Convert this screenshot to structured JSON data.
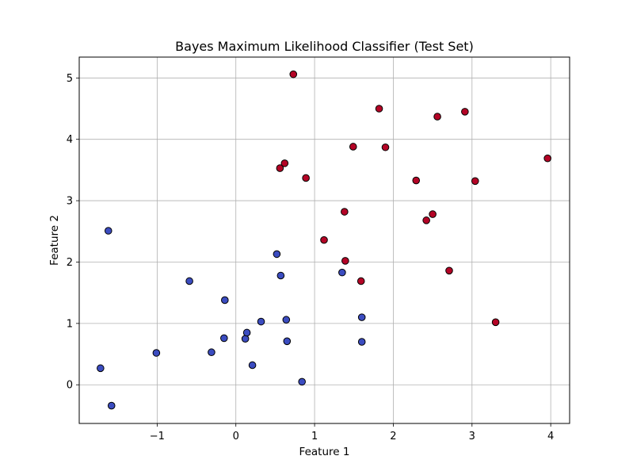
{
  "chart_data": {
    "type": "scatter",
    "title": "Bayes Maximum Likelihood Classifier (Test Set)",
    "xlabel": "Feature 1",
    "ylabel": "Feature 2",
    "xlim": [
      -1.99,
      4.24
    ],
    "ylim": [
      -0.63,
      5.34
    ],
    "xticks": [
      -1,
      0,
      1,
      2,
      3,
      4
    ],
    "yticks": [
      0,
      1,
      2,
      3,
      4,
      5
    ],
    "grid": true,
    "colors": {
      "class_0": "#3b4cc0",
      "class_1": "#b40426",
      "edge": "#000000",
      "grid": "#b0b0b0"
    },
    "series": [
      {
        "class": 0,
        "color": "#3b4cc0",
        "points": [
          [
            -1.72,
            0.27
          ],
          [
            -1.58,
            -0.34
          ],
          [
            -1.62,
            2.51
          ],
          [
            -1.01,
            0.52
          ],
          [
            -0.59,
            1.69
          ],
          [
            -0.31,
            0.53
          ],
          [
            -0.15,
            0.76
          ],
          [
            -0.14,
            1.38
          ],
          [
            0.12,
            0.75
          ],
          [
            0.14,
            0.85
          ],
          [
            0.21,
            0.32
          ],
          [
            0.32,
            1.03
          ],
          [
            0.52,
            2.13
          ],
          [
            0.57,
            1.78
          ],
          [
            0.64,
            1.06
          ],
          [
            0.65,
            0.71
          ],
          [
            0.84,
            0.05
          ],
          [
            1.35,
            1.83
          ],
          [
            1.6,
            1.1
          ],
          [
            1.6,
            0.7
          ]
        ]
      },
      {
        "class": 1,
        "color": "#b40426",
        "points": [
          [
            0.73,
            5.06
          ],
          [
            0.56,
            3.53
          ],
          [
            0.62,
            3.61
          ],
          [
            0.89,
            3.37
          ],
          [
            1.12,
            2.36
          ],
          [
            1.38,
            2.82
          ],
          [
            1.39,
            2.02
          ],
          [
            1.49,
            3.88
          ],
          [
            1.59,
            1.69
          ],
          [
            1.82,
            4.5
          ],
          [
            1.9,
            3.87
          ],
          [
            2.29,
            3.33
          ],
          [
            2.42,
            2.68
          ],
          [
            2.5,
            2.78
          ],
          [
            2.56,
            4.37
          ],
          [
            2.71,
            1.86
          ],
          [
            2.91,
            4.45
          ],
          [
            3.04,
            3.32
          ],
          [
            3.3,
            1.02
          ],
          [
            3.96,
            3.69
          ]
        ]
      }
    ]
  }
}
